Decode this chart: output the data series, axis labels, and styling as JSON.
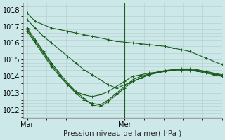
{
  "background_color": "#cce8e8",
  "grid_color_major": "#b8d0d0",
  "grid_color_minor": "#d0e4e4",
  "line_color": "#1a5c1a",
  "marker": "+",
  "ylabel_ticks": [
    1012,
    1013,
    1014,
    1015,
    1016,
    1017,
    1018
  ],
  "ylim": [
    1011.5,
    1018.4
  ],
  "xlabel": "Pression niveau de la mer( hPa )",
  "xtick_labels": [
    "Mar",
    "",
    "Mer"
  ],
  "xtick_positions": [
    0,
    0.5,
    0.58
  ],
  "vline_x": 0.5,
  "xlim": [
    -0.02,
    1.0
  ],
  "n_points": 25,
  "series": [
    [
      1017.8,
      1017.3,
      1017.1,
      1016.9,
      1016.8,
      1016.7,
      1016.6,
      1016.5,
      1016.4,
      1016.3,
      1016.2,
      1016.1,
      1016.05,
      1016.0,
      1015.95,
      1015.9,
      1015.85,
      1015.8,
      1015.7,
      1015.6,
      1015.5,
      1015.3,
      1015.1,
      1014.9,
      1014.7
    ],
    [
      1017.4,
      1016.9,
      1016.4,
      1016.0,
      1015.6,
      1015.2,
      1014.8,
      1014.4,
      1014.1,
      1013.8,
      1013.5,
      1013.3,
      1013.5,
      1013.7,
      1013.9,
      1014.1,
      1014.2,
      1014.3,
      1014.4,
      1014.45,
      1014.45,
      1014.4,
      1014.3,
      1014.2,
      1014.1
    ],
    [
      1016.9,
      1016.2,
      1015.5,
      1014.8,
      1014.2,
      1013.6,
      1013.1,
      1012.7,
      1012.3,
      1012.2,
      1012.5,
      1012.9,
      1013.3,
      1013.7,
      1013.9,
      1014.1,
      1014.25,
      1014.35,
      1014.4,
      1014.4,
      1014.4,
      1014.35,
      1014.25,
      1014.15,
      1014.05
    ],
    [
      1016.8,
      1016.1,
      1015.4,
      1014.7,
      1014.1,
      1013.5,
      1013.0,
      1012.6,
      1012.4,
      1012.3,
      1012.6,
      1013.0,
      1013.4,
      1013.8,
      1014.0,
      1014.15,
      1014.25,
      1014.35,
      1014.4,
      1014.4,
      1014.4,
      1014.35,
      1014.25,
      1014.15,
      1014.05
    ],
    [
      1016.7,
      1016.0,
      1015.3,
      1014.6,
      1014.0,
      1013.5,
      1013.1,
      1012.9,
      1012.8,
      1012.9,
      1013.1,
      1013.4,
      1013.7,
      1014.0,
      1014.1,
      1014.2,
      1014.25,
      1014.3,
      1014.35,
      1014.35,
      1014.35,
      1014.3,
      1014.2,
      1014.1,
      1014.0
    ]
  ]
}
